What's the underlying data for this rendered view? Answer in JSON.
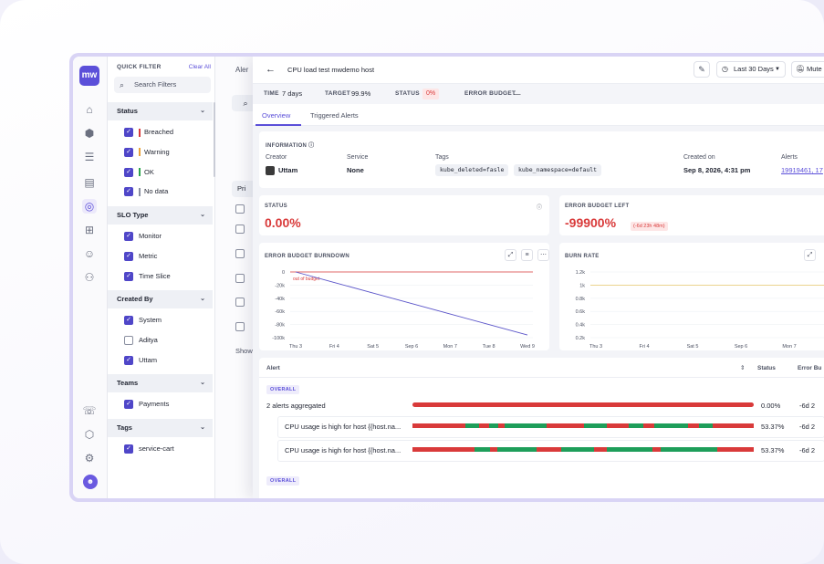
{
  "filters": {
    "title": "QUICK FILTER",
    "clear_label": "Clear All",
    "search_placeholder": "Search Filters",
    "groups": [
      {
        "title": "Status",
        "items": [
          {
            "label": "Breached",
            "checked": true,
            "color": "#d93a3a"
          },
          {
            "label": "Warning",
            "checked": true,
            "color": "#e9a23b"
          },
          {
            "label": "OK",
            "checked": true,
            "color": "#2da44e"
          },
          {
            "label": "No data",
            "checked": true,
            "color": "#8a8fa0"
          }
        ]
      },
      {
        "title": "SLO Type",
        "items": [
          {
            "label": "Monitor",
            "checked": true
          },
          {
            "label": "Metric",
            "checked": true
          },
          {
            "label": "Time Slice",
            "checked": true
          }
        ]
      },
      {
        "title": "Created By",
        "items": [
          {
            "label": "System",
            "checked": true
          },
          {
            "label": "Aditya",
            "checked": false
          },
          {
            "label": "Uttam",
            "checked": true
          }
        ]
      },
      {
        "title": "Teams",
        "items": [
          {
            "label": "Payments",
            "checked": true
          }
        ]
      },
      {
        "title": "Tags",
        "items": [
          {
            "label": "service-cart",
            "checked": true
          }
        ]
      }
    ]
  },
  "behind": {
    "tab_label": "Aler",
    "button_label": "Pri",
    "footer_label": "Show"
  },
  "drawer": {
    "title": "CPU load test mwdemo host",
    "range_label": "Last 30 Days",
    "mute_label": "Mute S",
    "meta": {
      "time_key": "TIME",
      "time_value": "7 days",
      "target_key": "TARGET",
      "target_value": "99.9%",
      "status_key": "STATUS",
      "status_value": "0%",
      "budget_key": "ERROR BUDGET",
      "budget_value": "—"
    },
    "tabs": [
      "Overview",
      "Triggered Alerts"
    ],
    "information": {
      "caption": "INFORMATION",
      "creator_label": "Creator",
      "creator_value": "Uttam",
      "service_label": "Service",
      "service_value": "None",
      "tags_label": "Tags",
      "tags": [
        "kube_deleted=fasle",
        "kube_namespace=default"
      ],
      "created_label": "Created on",
      "created_value": "Sep 8, 2026, 4:31 pm",
      "alerts_label": "Alerts",
      "alerts_links": [
        "19919461",
        ", 17"
      ]
    },
    "status_card": {
      "caption": "STATUS",
      "value": "0.00%"
    },
    "budget_card": {
      "caption": "ERROR BUDGET LEFT",
      "value": "-99900%",
      "pill": "(-6d 23h 48m)"
    },
    "burndown_card": {
      "caption": "ERROR BUDGET BURNDOWN"
    },
    "burnrate_card": {
      "caption": "BURN RATE"
    },
    "alerts_table": {
      "col_alert": "Alert",
      "col_status": "Status",
      "col_budget": "Error Bu",
      "overall_badge": "OVERALL",
      "aggregate_label": "2 alerts aggregated",
      "aggregate_status": "0.00%",
      "aggregate_budget": "-6d 2",
      "rows": [
        {
          "name": "CPU usage is high for host {{host.na...",
          "status": "53.37%",
          "budget": "-6d 2"
        },
        {
          "name": "CPU usage is high for host {{host.na...",
          "status": "53.37%",
          "budget": "-6d 2"
        }
      ],
      "overall_badge_2": "OVERALL"
    }
  },
  "chart_data": [
    {
      "type": "line",
      "title": "ERROR BUDGET BURNDOWN",
      "x": [
        "Thu 3",
        "Fri 4",
        "Sat 5",
        "Sep 6",
        "Mon 7",
        "Tue 8",
        "Wed 9"
      ],
      "yticks": [
        "0",
        "-20k",
        "-40k",
        "-60k",
        "-80k",
        "-100k"
      ],
      "ylim": [
        -100000,
        0
      ],
      "series": [
        {
          "values": [
            0,
            -16000,
            -32000,
            -48000,
            -64000,
            -80000,
            -96000
          ],
          "color": "#5b55c9"
        }
      ],
      "threshold_label": "out of budget",
      "threshold_value": 0,
      "threshold_color": "#d93a3a"
    },
    {
      "type": "line",
      "title": "BURN RATE",
      "x": [
        "Thu 3",
        "Fri 4",
        "Sat 5",
        "Sep 6",
        "Mon 7",
        "Tue 8"
      ],
      "yticks": [
        "1.2k",
        "1k",
        "0.8k",
        "0.6k",
        "0.4k",
        "0.2k"
      ],
      "ylim": [
        200,
        1200
      ],
      "threshold_value": 1000,
      "threshold_color": "#e9c86a"
    }
  ],
  "colors": {
    "accent": "#5b4fd9",
    "bad": "#d93a3a",
    "good": "#1e9e5a"
  }
}
